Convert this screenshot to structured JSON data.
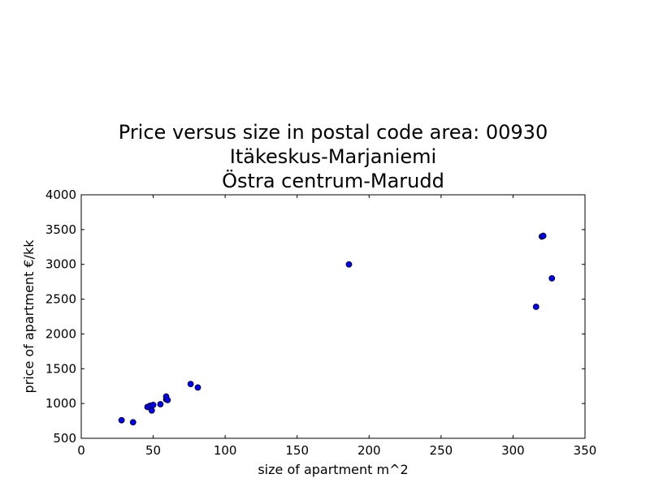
{
  "chart_data": {
    "type": "scatter",
    "title_lines": [
      "Price versus size in postal code area: 00930",
      "Itäkeskus-Marjaniemi",
      "Östra centrum-Marudd"
    ],
    "xlabel": "size of apartment m^2",
    "ylabel": "price of apartment €/kk",
    "xlim": [
      0,
      350
    ],
    "ylim": [
      500,
      4000
    ],
    "xticks": [
      "0",
      "50",
      "100",
      "150",
      "200",
      "250",
      "300",
      "350"
    ],
    "yticks": [
      "500",
      "1000",
      "1500",
      "2000",
      "2500",
      "3000",
      "3500",
      "4000"
    ],
    "grid": false,
    "legend": "none",
    "point_color": "#0000ff",
    "points": [
      {
        "x": 28,
        "y": 760
      },
      {
        "x": 36,
        "y": 730
      },
      {
        "x": 46,
        "y": 950
      },
      {
        "x": 48,
        "y": 970
      },
      {
        "x": 49,
        "y": 900
      },
      {
        "x": 50,
        "y": 980
      },
      {
        "x": 55,
        "y": 990
      },
      {
        "x": 59,
        "y": 1060
      },
      {
        "x": 59,
        "y": 1100
      },
      {
        "x": 60,
        "y": 1050
      },
      {
        "x": 76,
        "y": 1280
      },
      {
        "x": 81,
        "y": 1230
      },
      {
        "x": 186,
        "y": 3000
      },
      {
        "x": 316,
        "y": 2390
      },
      {
        "x": 320,
        "y": 3400
      },
      {
        "x": 321,
        "y": 3410
      },
      {
        "x": 327,
        "y": 2800
      }
    ]
  }
}
